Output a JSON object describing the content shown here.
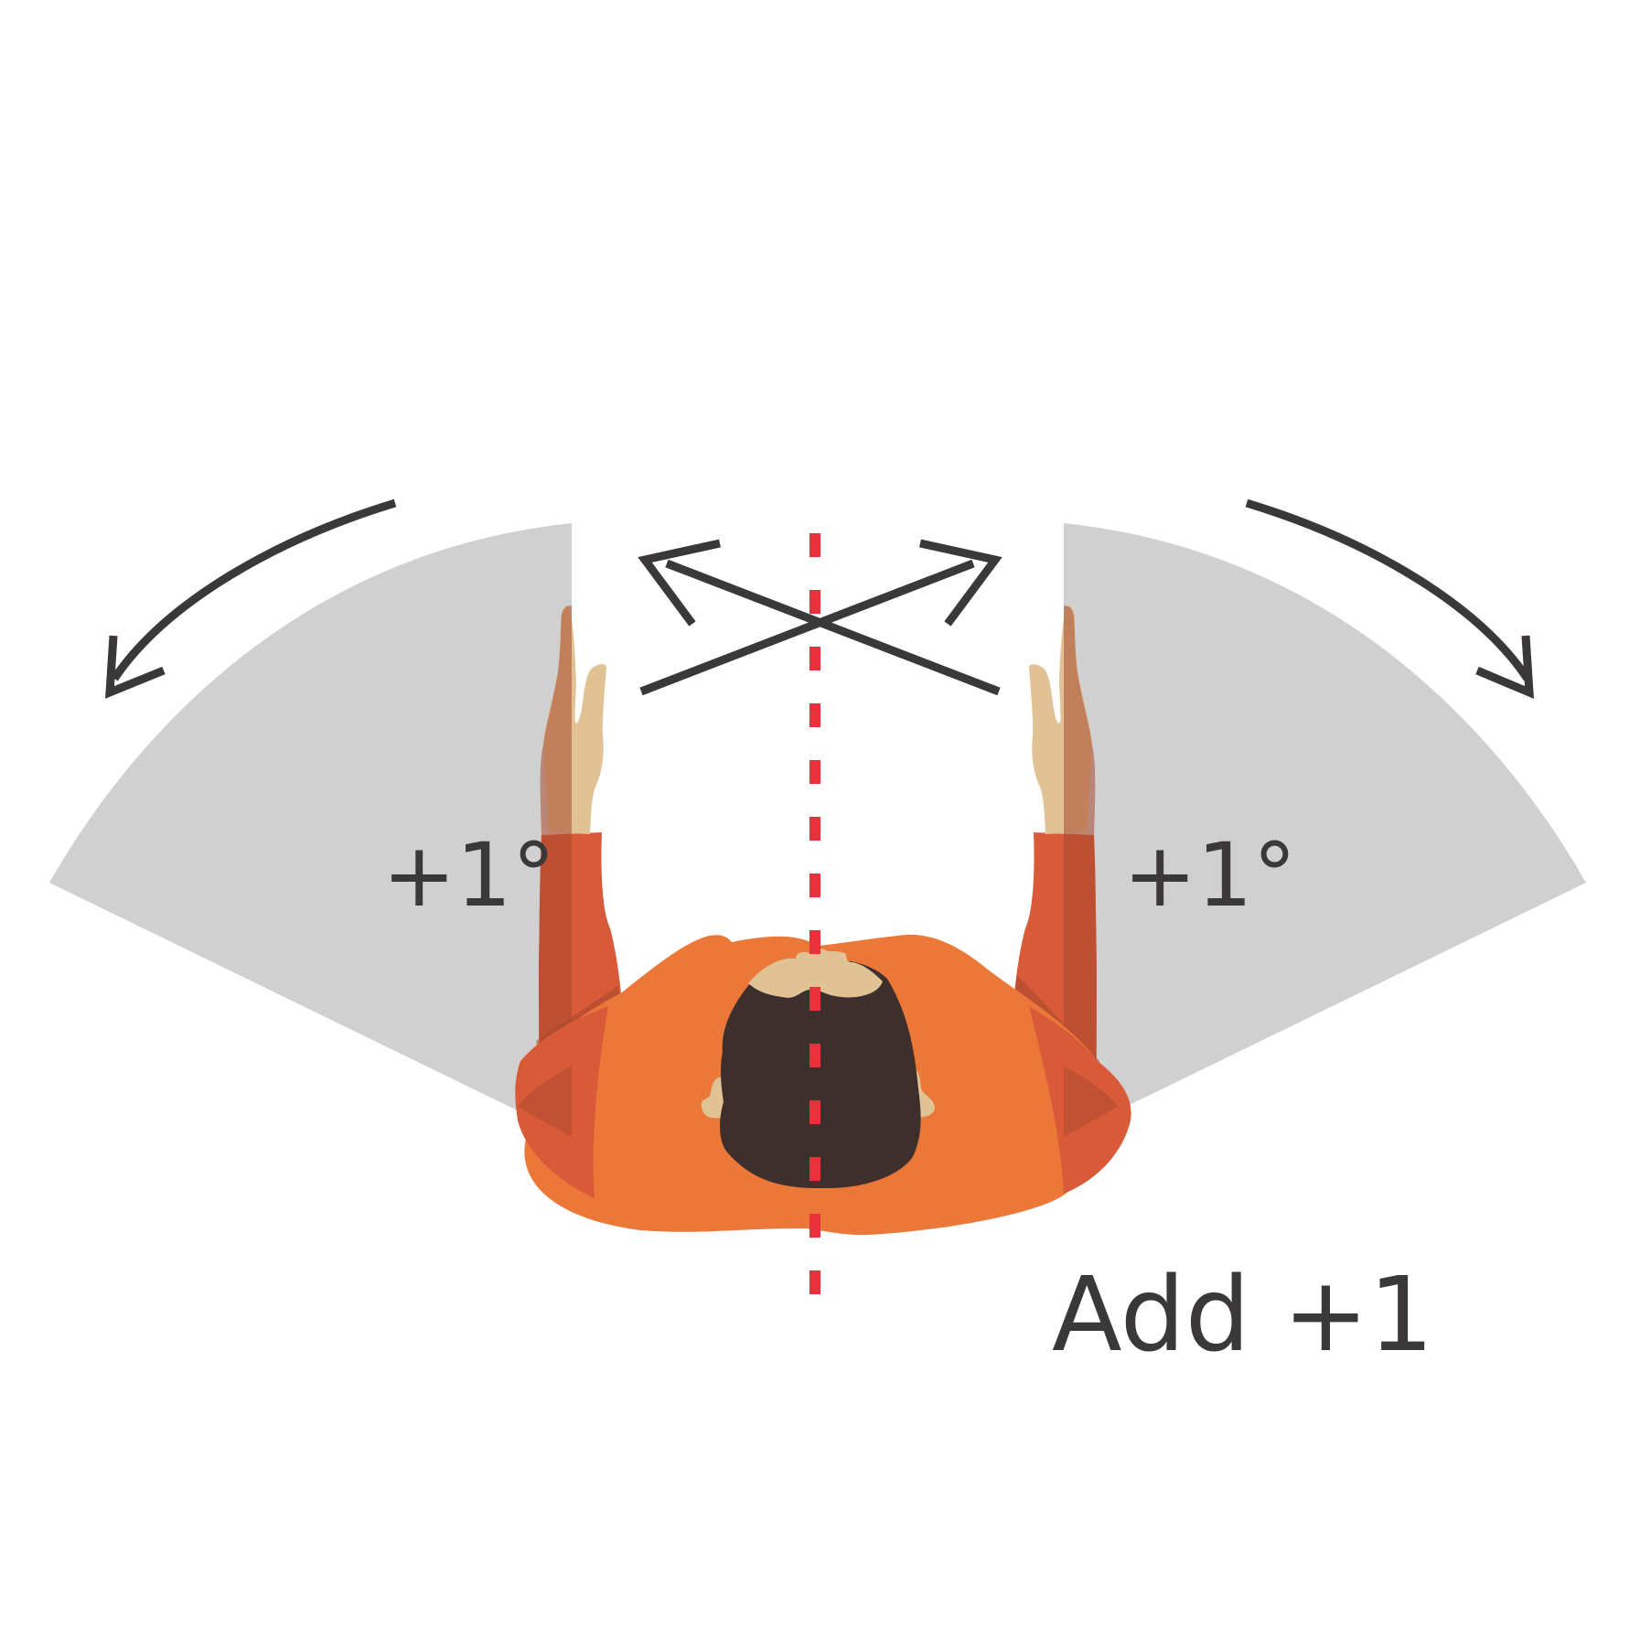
{
  "diagram": {
    "left_angle_label": "+1°",
    "right_angle_label": "+1°",
    "result_label": "Add +1"
  },
  "colors": {
    "background": "#ffffff",
    "range_wedge": "#d0d0d0",
    "arrow": "#3a3838",
    "centerline": "#e8313a",
    "shirt": "#eb7838",
    "sleeve": "#d85a38",
    "sleeve_shadow": "#a8482e",
    "skin": "#e0c295",
    "hair": "#3f2f2c",
    "text": "#3a3838"
  }
}
